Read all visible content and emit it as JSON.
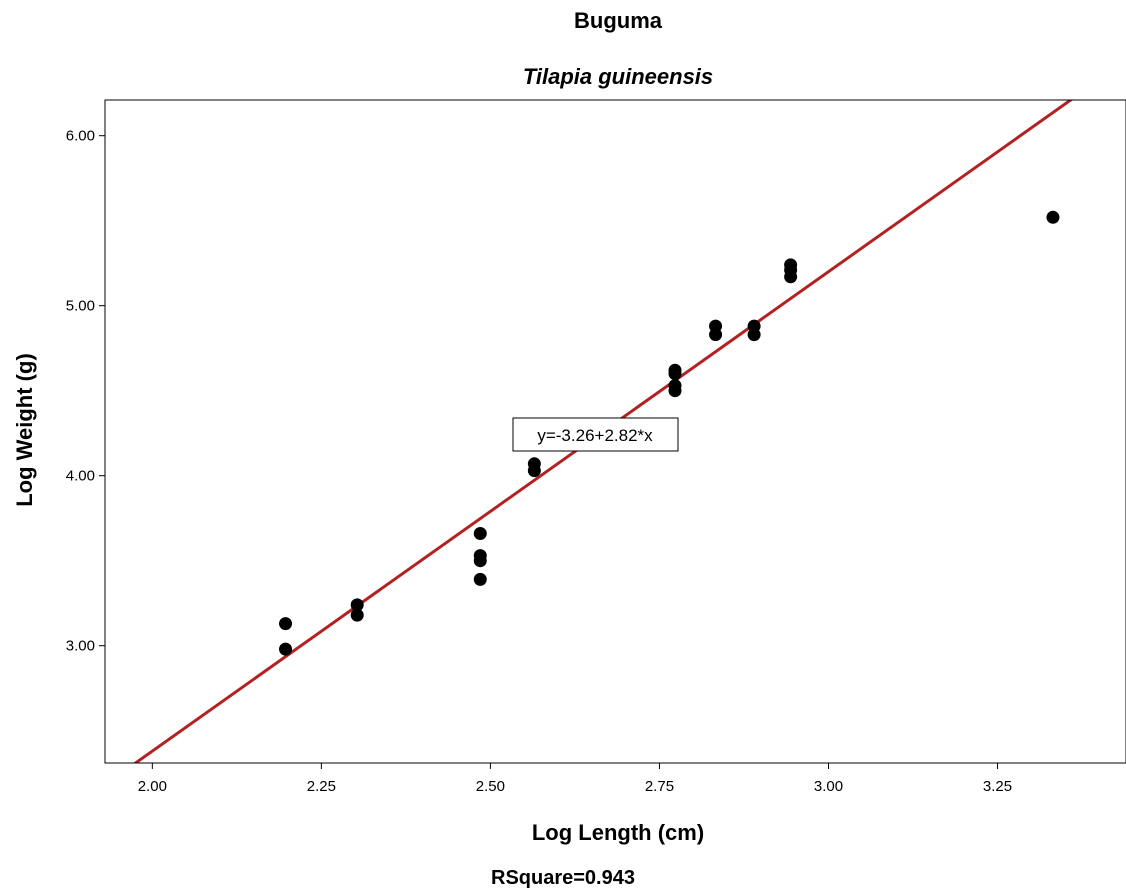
{
  "chart_data": {
    "type": "scatter",
    "title": "Buguma",
    "subtitle": "Tilapia guineensis",
    "xlabel": "Log Length (cm)",
    "ylabel": "Log Weight (g)",
    "xlim": [
      1.93,
      3.44
    ],
    "ylim": [
      2.31,
      6.21
    ],
    "x_ticks": [
      2.0,
      2.25,
      2.5,
      2.75,
      3.0,
      3.25
    ],
    "x_tick_labels": [
      "2.00",
      "2.25",
      "2.50",
      "2.75",
      "3.00",
      "3.25"
    ],
    "y_ticks": [
      3.0,
      4.0,
      5.0,
      6.0
    ],
    "y_tick_labels": [
      "3.00",
      "4.00",
      "5.00",
      "6.00"
    ],
    "grid": false,
    "point_color": "#000000",
    "line_color": "#b22222",
    "points": [
      {
        "x": 2.197,
        "y": 3.13
      },
      {
        "x": 2.197,
        "y": 2.98
      },
      {
        "x": 2.303,
        "y": 3.24
      },
      {
        "x": 2.303,
        "y": 3.18
      },
      {
        "x": 2.485,
        "y": 3.66
      },
      {
        "x": 2.485,
        "y": 3.53
      },
      {
        "x": 2.485,
        "y": 3.5
      },
      {
        "x": 2.485,
        "y": 3.39
      },
      {
        "x": 2.565,
        "y": 4.07
      },
      {
        "x": 2.565,
        "y": 4.03
      },
      {
        "x": 2.773,
        "y": 4.62
      },
      {
        "x": 2.773,
        "y": 4.6
      },
      {
        "x": 2.773,
        "y": 4.53
      },
      {
        "x": 2.773,
        "y": 4.5
      },
      {
        "x": 2.833,
        "y": 4.88
      },
      {
        "x": 2.833,
        "y": 4.83
      },
      {
        "x": 2.89,
        "y": 4.88
      },
      {
        "x": 2.89,
        "y": 4.83
      },
      {
        "x": 2.944,
        "y": 5.24
      },
      {
        "x": 2.944,
        "y": 5.21
      },
      {
        "x": 2.944,
        "y": 5.17
      },
      {
        "x": 3.332,
        "y": 5.52
      }
    ],
    "fit_line": {
      "intercept": -3.26,
      "slope": 2.82,
      "equation_label": "y=-3.26+2.82*x"
    },
    "rsquare_label": "RSquare=0.943"
  }
}
